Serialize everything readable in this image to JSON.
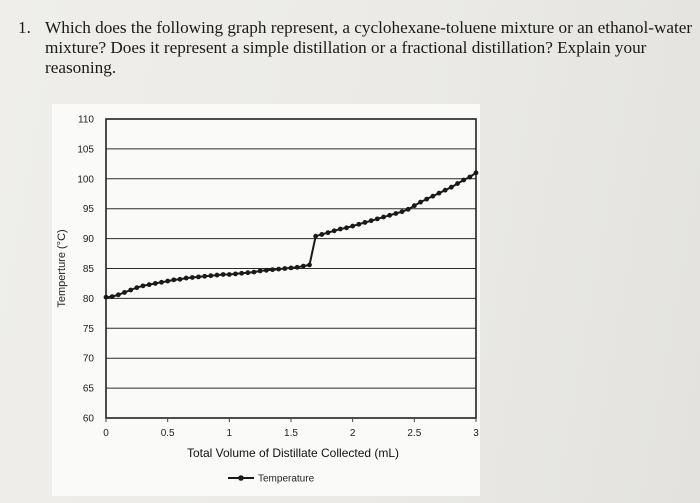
{
  "question": {
    "number": "1.",
    "text": "Which does the following graph represent, a cyclohexane-toluene mixture or an ethanol-water mixture? Does it represent a simple distillation or a fractional distillation? Explain your reasoning."
  },
  "chart_data": {
    "type": "line",
    "title": "",
    "xlabel": "Total Volume of Distillate Collected (mL)",
    "ylabel": "Temperture (°C)",
    "xlim": [
      0,
      3
    ],
    "ylim": [
      60,
      110
    ],
    "x_ticks": [
      "0",
      "0.5",
      "1",
      "1.5",
      "2",
      "2.5",
      "3"
    ],
    "y_ticks": [
      "110",
      "105",
      "100",
      "95",
      "90",
      "85",
      "80",
      "75",
      "70",
      "65",
      "60"
    ],
    "grid": "horizontal",
    "legend": "bottom",
    "line_color": "#1a1a1a",
    "series": [
      {
        "name": "Temperature",
        "x": [
          0.0,
          0.05,
          0.1,
          0.15,
          0.2,
          0.25,
          0.3,
          0.35,
          0.4,
          0.45,
          0.5,
          0.55,
          0.6,
          0.65,
          0.7,
          0.75,
          0.8,
          0.85,
          0.9,
          0.95,
          1.0,
          1.05,
          1.1,
          1.15,
          1.2,
          1.25,
          1.3,
          1.35,
          1.4,
          1.45,
          1.5,
          1.55,
          1.6,
          1.65,
          1.7,
          1.75,
          1.8,
          1.85,
          1.9,
          1.95,
          2.0,
          2.05,
          2.1,
          2.15,
          2.2,
          2.25,
          2.3,
          2.35,
          2.4,
          2.45,
          2.5,
          2.55,
          2.6,
          2.65,
          2.7,
          2.75,
          2.8,
          2.85,
          2.9,
          2.95,
          3.0
        ],
        "y": [
          80.2,
          80.3,
          80.6,
          81.0,
          81.4,
          81.8,
          82.1,
          82.3,
          82.5,
          82.7,
          82.9,
          83.1,
          83.2,
          83.4,
          83.5,
          83.6,
          83.7,
          83.8,
          83.9,
          84.0,
          84.0,
          84.1,
          84.2,
          84.3,
          84.4,
          84.6,
          84.7,
          84.8,
          84.9,
          85.0,
          85.1,
          85.2,
          85.4,
          85.6,
          90.4,
          90.7,
          91.0,
          91.3,
          91.6,
          91.8,
          92.1,
          92.4,
          92.7,
          93.0,
          93.3,
          93.6,
          93.9,
          94.2,
          94.5,
          94.9,
          95.5,
          96.1,
          96.6,
          97.1,
          97.6,
          98.1,
          98.6,
          99.2,
          99.8,
          100.3,
          101.0
        ]
      }
    ]
  }
}
